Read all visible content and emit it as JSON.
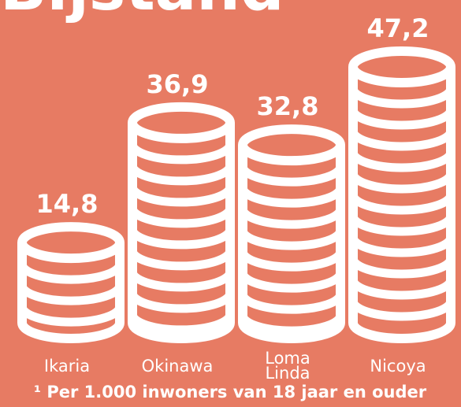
{
  "chart_data": {
    "type": "coin-stack",
    "title": "Bijstand",
    "categories": [
      "Ikaria",
      "Okinawa",
      "Loma Linda",
      "Nicoya"
    ],
    "values": [
      14.8,
      36.9,
      32.8,
      47.2
    ],
    "value_labels": [
      "14,8",
      "36,9",
      "32,8",
      "47,2"
    ],
    "color": "#ffffff",
    "footnote": "¹ Per 1.000 inwoners van 18 jaar en ouder"
  }
}
